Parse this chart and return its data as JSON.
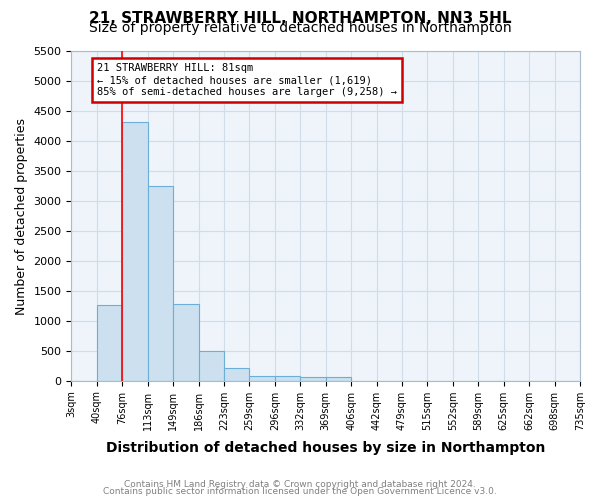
{
  "title": "21, STRAWBERRY HILL, NORTHAMPTON, NN3 5HL",
  "subtitle": "Size of property relative to detached houses in Northampton",
  "xlabel": "Distribution of detached houses by size in Northampton",
  "ylabel": "Number of detached properties",
  "footnote1": "Contains HM Land Registry data © Crown copyright and database right 2024.",
  "footnote2": "Contains public sector information licensed under the Open Government Licence v3.0.",
  "bin_labels": [
    "3sqm",
    "40sqm",
    "76sqm",
    "113sqm",
    "149sqm",
    "186sqm",
    "223sqm",
    "259sqm",
    "296sqm",
    "332sqm",
    "369sqm",
    "406sqm",
    "442sqm",
    "479sqm",
    "515sqm",
    "552sqm",
    "589sqm",
    "625sqm",
    "662sqm",
    "698sqm",
    "735sqm"
  ],
  "bar_values": [
    0,
    1260,
    4320,
    3260,
    1280,
    490,
    215,
    85,
    75,
    55,
    55,
    0,
    0,
    0,
    0,
    0,
    0,
    0,
    0,
    0
  ],
  "bar_color": "#cce0f0",
  "bar_edge_color": "#6baed6",
  "red_line_x": 2,
  "annotation_text": "21 STRAWBERRY HILL: 81sqm\n← 15% of detached houses are smaller (1,619)\n85% of semi-detached houses are larger (9,258) →",
  "annotation_box_color": "#ffffff",
  "annotation_box_edge_color": "#cc0000",
  "ylim": [
    0,
    5500
  ],
  "yticks": [
    0,
    500,
    1000,
    1500,
    2000,
    2500,
    3000,
    3500,
    4000,
    4500,
    5000,
    5500
  ],
  "grid_color": "#d0dce8",
  "background_color": "#eef4fa",
  "title_fontsize": 11,
  "subtitle_fontsize": 10,
  "axis_label_fontsize": 9,
  "tick_fontsize": 8
}
